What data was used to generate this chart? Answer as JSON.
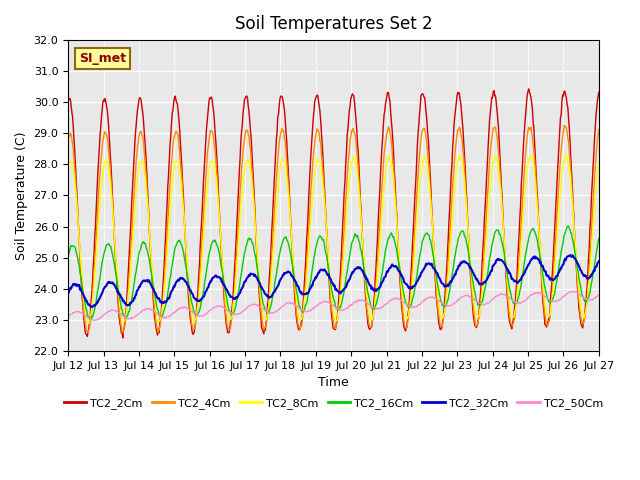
{
  "title": "Soil Temperatures Set 2",
  "ylabel": "Soil Temperature (C)",
  "xlabel": "Time",
  "ylim": [
    22.0,
    32.0
  ],
  "yticks": [
    22.0,
    23.0,
    24.0,
    25.0,
    26.0,
    27.0,
    28.0,
    29.0,
    30.0,
    31.0,
    32.0
  ],
  "xtick_positions": [
    0,
    1,
    2,
    3,
    4,
    5,
    6,
    7,
    8,
    9,
    10,
    11,
    12,
    13,
    14,
    15
  ],
  "xtick_labels": [
    "Jul 12",
    "Jul 13",
    "Jul 14",
    "Jul 15",
    "Jul 16",
    "Jul 17",
    "Jul 18",
    "Jul 19",
    "Jul 20",
    "Jul 21",
    "Jul 22",
    "Jul 23",
    "Jul 24",
    "Jul 25",
    "Jul 26",
    "Jul 27"
  ],
  "series_colors": [
    "#cc0000",
    "#ff8800",
    "#ffff00",
    "#00cc00",
    "#0000cc",
    "#ff88cc"
  ],
  "series_labels": [
    "TC2_2Cm",
    "TC2_4Cm",
    "TC2_8Cm",
    "TC2_16Cm",
    "TC2_32Cm",
    "TC2_50Cm"
  ],
  "annotation_text": "SI_met",
  "bg_color": "#e8e8e8",
  "fig_bg": "#ffffff",
  "n_days": 15,
  "n_pts_per_day": 48
}
